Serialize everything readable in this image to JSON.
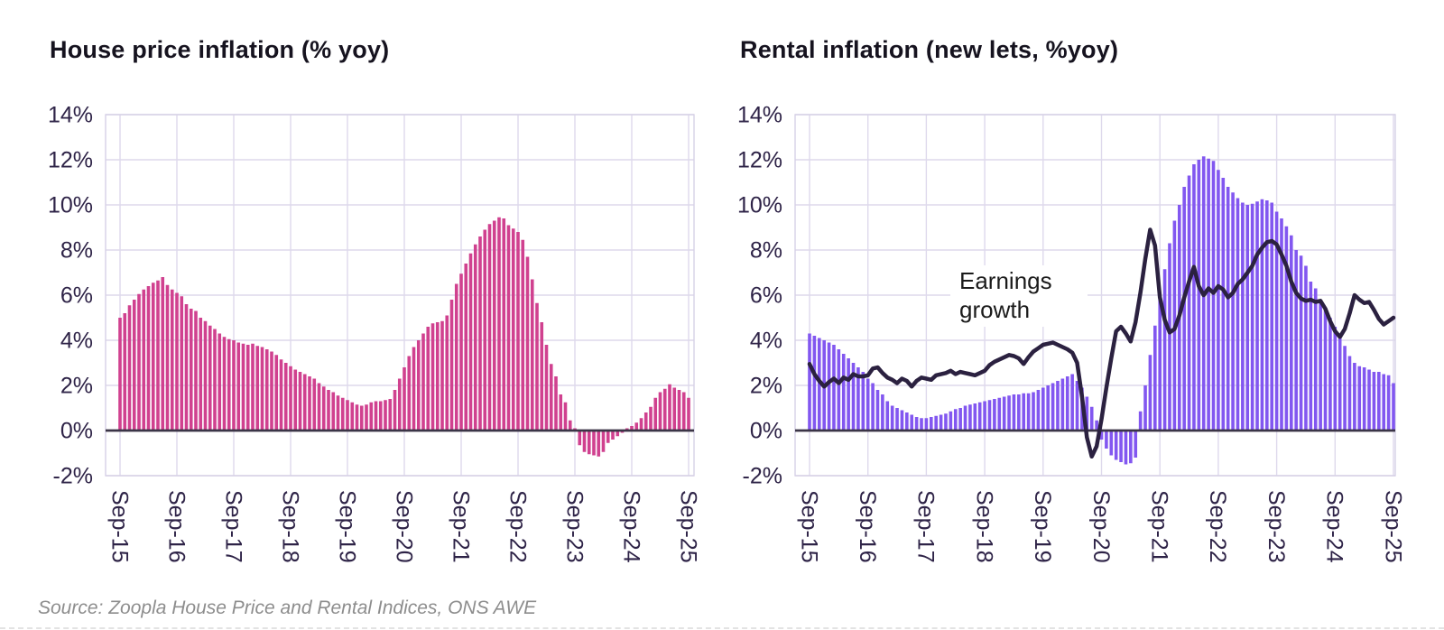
{
  "page": {
    "source_note": "Source:  Zoopla House Price and Rental Indices, ONS AWE"
  },
  "chart_data": [
    {
      "id": "house",
      "type": "bar",
      "title": "House price inflation (% yoy)",
      "bar_color": "#d0418f",
      "start_month": "Sep-15",
      "frequency": "monthly",
      "ylim": [
        -2,
        14
      ],
      "grid": true,
      "y_ticks": [
        "14%",
        "12%",
        "10%",
        "8%",
        "6%",
        "4%",
        "2%",
        "0%",
        "-2%"
      ],
      "x_ticks": [
        "Sep-15",
        "Sep-16",
        "Sep-17",
        "Sep-18",
        "Sep-19",
        "Sep-20",
        "Sep-21",
        "Sep-22",
        "Sep-23",
        "Sep-24",
        "Sep-25"
      ],
      "values": [
        5.0,
        5.2,
        5.55,
        5.8,
        6.05,
        6.25,
        6.4,
        6.55,
        6.65,
        6.8,
        6.45,
        6.25,
        6.1,
        5.95,
        5.6,
        5.4,
        5.3,
        5.0,
        4.85,
        4.65,
        4.5,
        4.3,
        4.15,
        4.05,
        4.0,
        3.9,
        3.85,
        3.8,
        3.85,
        3.75,
        3.7,
        3.6,
        3.5,
        3.35,
        3.15,
        3.0,
        2.85,
        2.7,
        2.6,
        2.5,
        2.4,
        2.3,
        2.1,
        1.95,
        1.8,
        1.7,
        1.55,
        1.45,
        1.35,
        1.25,
        1.15,
        1.1,
        1.15,
        1.25,
        1.3,
        1.3,
        1.35,
        1.4,
        1.8,
        2.3,
        2.8,
        3.3,
        3.7,
        4.0,
        4.3,
        4.6,
        4.75,
        4.8,
        4.85,
        5.1,
        5.8,
        6.5,
        6.95,
        7.4,
        7.85,
        8.25,
        8.6,
        8.9,
        9.15,
        9.3,
        9.45,
        9.4,
        9.1,
        8.95,
        8.8,
        8.45,
        7.7,
        6.7,
        5.65,
        4.8,
        3.8,
        2.95,
        2.4,
        1.6,
        1.25,
        0.45,
        0.1,
        -0.65,
        -0.95,
        -1.05,
        -1.1,
        -1.15,
        -0.95,
        -0.55,
        -0.4,
        -0.25,
        -0.1,
        0.1,
        0.2,
        0.35,
        0.55,
        0.8,
        1.05,
        1.45,
        1.7,
        1.85,
        2.05,
        1.9,
        1.8,
        1.7,
        1.45
      ]
    },
    {
      "id": "rental",
      "type": "bar+line",
      "title": "Rental inflation (new lets, %yoy)",
      "bar_color": "#8257f0",
      "line_color": "#2b2140",
      "annotation": {
        "lines": [
          "Earnings",
          "growth"
        ]
      },
      "start_month": "Sep-15",
      "frequency": "monthly",
      "ylim": [
        -2,
        14
      ],
      "grid": true,
      "y_ticks": [
        "14%",
        "12%",
        "10%",
        "8%",
        "6%",
        "4%",
        "2%",
        "0%",
        "-2%"
      ],
      "x_ticks": [
        "Sep-15",
        "Sep-16",
        "Sep-17",
        "Sep-18",
        "Sep-19",
        "Sep-20",
        "Sep-21",
        "Sep-22",
        "Sep-23",
        "Sep-24",
        "Sep-25"
      ],
      "series": [
        {
          "name": "Rental inflation (new lets)",
          "kind": "bar",
          "values": [
            4.3,
            4.2,
            4.1,
            4.0,
            3.9,
            3.8,
            3.6,
            3.4,
            3.2,
            3.0,
            2.8,
            2.6,
            2.3,
            2.1,
            1.8,
            1.6,
            1.3,
            1.1,
            1.0,
            0.9,
            0.8,
            0.7,
            0.6,
            0.55,
            0.55,
            0.6,
            0.65,
            0.7,
            0.75,
            0.85,
            0.95,
            1.0,
            1.1,
            1.15,
            1.2,
            1.25,
            1.3,
            1.35,
            1.4,
            1.45,
            1.5,
            1.55,
            1.6,
            1.6,
            1.65,
            1.65,
            1.7,
            1.8,
            1.9,
            2.0,
            2.1,
            2.2,
            2.3,
            2.4,
            2.5,
            2.2,
            1.9,
            1.5,
            1.05,
            0.45,
            -0.4,
            -0.8,
            -1.1,
            -1.3,
            -1.4,
            -1.5,
            -1.45,
            -1.2,
            0.85,
            2.0,
            3.35,
            4.65,
            6.0,
            7.15,
            8.3,
            9.3,
            10.0,
            10.8,
            11.3,
            11.8,
            12.0,
            12.15,
            12.05,
            11.95,
            11.55,
            11.2,
            10.8,
            10.55,
            10.3,
            10.1,
            10.0,
            10.05,
            10.15,
            10.25,
            10.2,
            10.1,
            9.7,
            9.4,
            9.05,
            8.65,
            8.0,
            7.75,
            7.3,
            6.6,
            6.3,
            5.8,
            5.35,
            5.0,
            4.6,
            4.1,
            3.75,
            3.3,
            3.0,
            2.85,
            2.8,
            2.7,
            2.6,
            2.6,
            2.5,
            2.45,
            2.1
          ]
        },
        {
          "name": "Earnings growth",
          "kind": "line",
          "values": [
            2.95,
            2.5,
            2.2,
            1.95,
            2.15,
            2.3,
            2.1,
            2.35,
            2.25,
            2.5,
            2.4,
            2.4,
            2.45,
            2.75,
            2.8,
            2.55,
            2.35,
            2.25,
            2.1,
            2.3,
            2.2,
            1.95,
            2.2,
            2.35,
            2.3,
            2.25,
            2.45,
            2.5,
            2.55,
            2.65,
            2.5,
            2.6,
            2.55,
            2.5,
            2.45,
            2.55,
            2.65,
            2.9,
            3.05,
            3.15,
            3.25,
            3.35,
            3.3,
            3.2,
            2.95,
            3.25,
            3.5,
            3.65,
            3.8,
            3.85,
            3.9,
            3.8,
            3.7,
            3.6,
            3.45,
            3.0,
            1.5,
            -0.3,
            -1.15,
            -0.7,
            0.5,
            1.9,
            3.2,
            4.4,
            4.6,
            4.3,
            3.95,
            4.8,
            6.1,
            7.6,
            8.9,
            8.2,
            5.9,
            4.9,
            4.35,
            4.5,
            5.1,
            5.9,
            6.6,
            7.25,
            6.4,
            6.0,
            6.3,
            6.1,
            6.4,
            6.25,
            5.9,
            6.1,
            6.5,
            6.7,
            7.0,
            7.3,
            7.8,
            8.1,
            8.35,
            8.4,
            8.25,
            7.8,
            7.3,
            6.6,
            6.1,
            5.85,
            5.75,
            5.8,
            5.7,
            5.75,
            5.4,
            4.85,
            4.4,
            4.15,
            4.5,
            5.2,
            6.0,
            5.8,
            5.65,
            5.7,
            5.35,
            4.95,
            4.7,
            4.85,
            5.0
          ]
        }
      ]
    }
  ]
}
